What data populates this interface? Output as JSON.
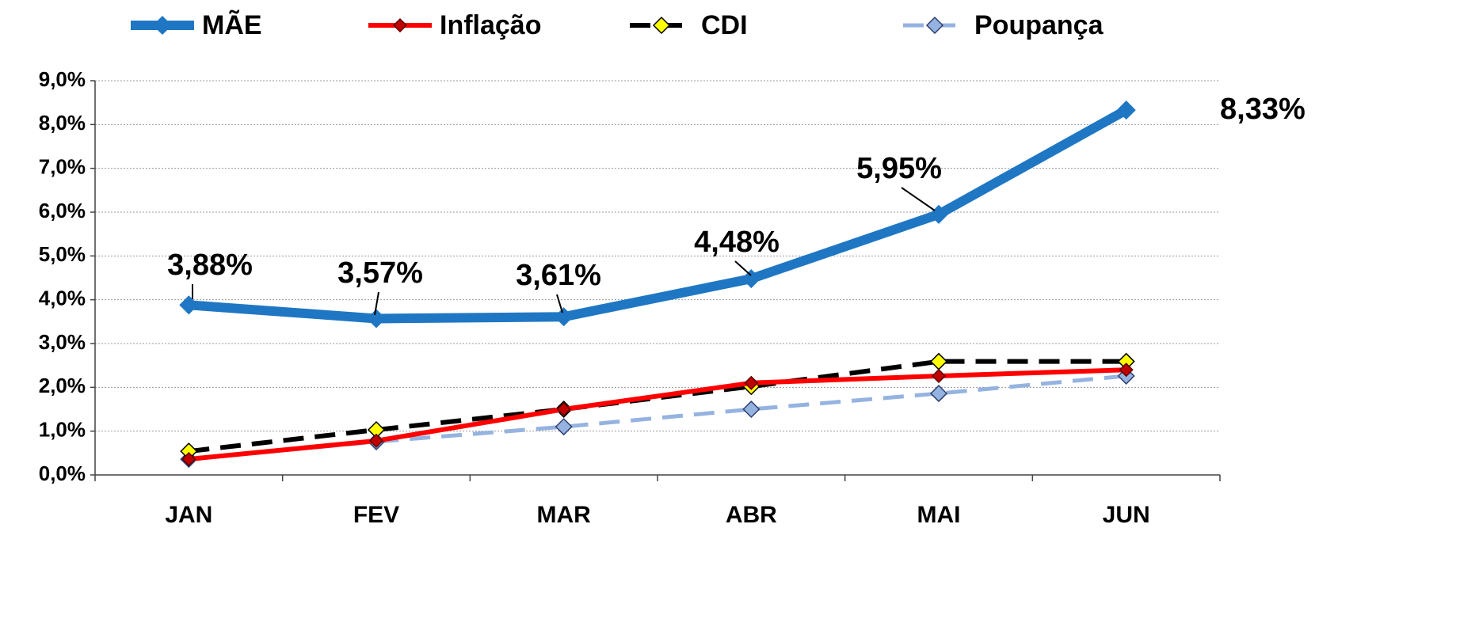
{
  "chart_data": {
    "type": "line",
    "categories": [
      "JAN",
      "FEV",
      "MAR",
      "ABR",
      "MAI",
      "JUN"
    ],
    "series": [
      {
        "name": "MÃE",
        "color": "#1f77c4",
        "marker_color": "#1f77c4",
        "marker_edge": "#1f77c4",
        "dashed": false,
        "values": [
          3.88,
          3.57,
          3.61,
          4.48,
          5.95,
          8.33
        ],
        "value_labels": [
          "3,88%",
          "3,57%",
          "3,61%",
          "4,48%",
          "5,95%",
          "8,33%"
        ]
      },
      {
        "name": "Inflação",
        "color": "#ff0000",
        "marker_color": "#c00000",
        "marker_edge": "#600000",
        "dashed": false,
        "values": [
          0.36,
          0.78,
          1.5,
          2.1,
          2.26,
          2.4
        ]
      },
      {
        "name": "CDI",
        "color": "#000000",
        "marker_color": "#ffff00",
        "marker_edge": "#000000",
        "dashed": true,
        "values": [
          0.54,
          1.03,
          1.5,
          2.02,
          2.59,
          2.59
        ]
      },
      {
        "name": "Poupança",
        "color": "#95b3e0",
        "marker_color": "#95b3e0",
        "marker_edge": "#2f3f6f",
        "dashed": true,
        "values": [
          0.36,
          0.76,
          1.1,
          1.5,
          1.86,
          2.26
        ]
      }
    ],
    "ylim": [
      0,
      9
    ],
    "yticks": [
      {
        "value": 0,
        "label": "0,0%"
      },
      {
        "value": 1,
        "label": "1,0%"
      },
      {
        "value": 2,
        "label": "2,0%"
      },
      {
        "value": 3,
        "label": "3,0%"
      },
      {
        "value": 4,
        "label": "4,0%"
      },
      {
        "value": 5,
        "label": "5,0%"
      },
      {
        "value": 6,
        "label": "6,0%"
      },
      {
        "value": 7,
        "label": "7,0%"
      },
      {
        "value": 8,
        "label": "8,0%"
      },
      {
        "value": 9,
        "label": "9,0%"
      }
    ],
    "grid": true
  }
}
